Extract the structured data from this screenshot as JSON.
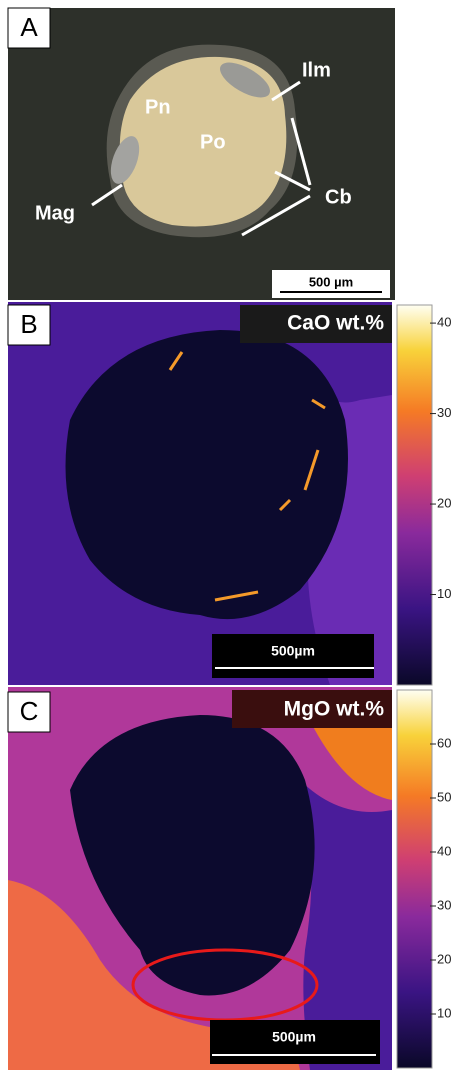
{
  "panels": [
    {
      "label": "A",
      "annotations": [
        "Ilm",
        "Pn",
        "Po",
        "Mag",
        "Cb"
      ],
      "scale_bar": "500 µm"
    },
    {
      "label": "B",
      "title": "CaO wt.%",
      "scale_bar": "500µm",
      "colorbar": {
        "lim": [
          0,
          42
        ],
        "ticks": [
          10,
          20,
          30,
          40
        ]
      }
    },
    {
      "label": "C",
      "title": "MgO wt.%",
      "scale_bar": "500µm",
      "colorbar": {
        "lim": [
          0,
          70
        ],
        "ticks": [
          10,
          20,
          30,
          40,
          50,
          60
        ]
      }
    }
  ]
}
